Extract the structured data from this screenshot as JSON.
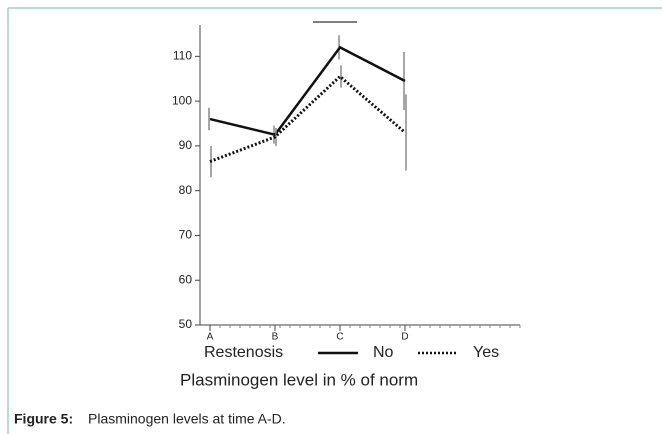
{
  "chart_data": {
    "type": "line",
    "categories": [
      "A",
      "B",
      "C",
      "D"
    ],
    "series": [
      {
        "name": "No",
        "color": "#111111",
        "dash": "solid",
        "values": [
          96,
          92.5,
          112,
          104.5
        ],
        "errors": [
          2.5,
          2,
          2.7,
          6.5
        ]
      },
      {
        "name": "Yes",
        "color": "#111111",
        "dash": "dotted",
        "values": [
          86.5,
          92,
          105.5,
          93
        ],
        "errors": [
          3.5,
          2,
          2.5,
          8.5
        ]
      }
    ],
    "legend_title": "Restenosis",
    "xlabel": "Plasminogen level in % of norm",
    "ylim": [
      50,
      117
    ],
    "yticks": [
      50,
      60,
      70,
      80,
      90,
      100,
      110
    ]
  },
  "caption": {
    "label": "Figure 5:",
    "text": "Plasminogen levels at time A-D."
  }
}
